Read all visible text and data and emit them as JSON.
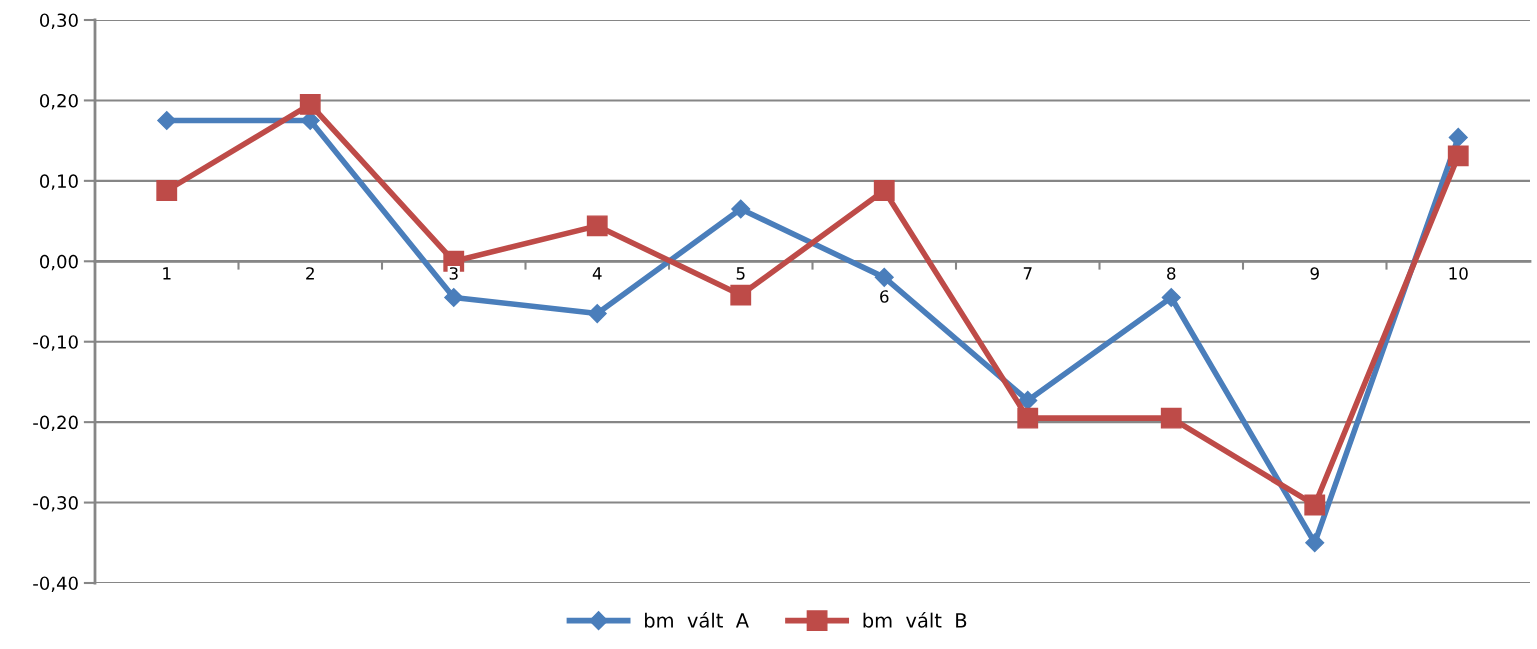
{
  "chart_data": {
    "type": "line",
    "categories": [
      "1",
      "2",
      "3",
      "4",
      "5",
      "6",
      "7",
      "8",
      "9",
      "10"
    ],
    "series": [
      {
        "name": "bm  vált  A",
        "color": "#4a7ebb",
        "marker": "diamond",
        "values": [
          0.175,
          0.175,
          -0.045,
          -0.065,
          0.065,
          -0.02,
          -0.173,
          -0.045,
          -0.35,
          0.154
        ]
      },
      {
        "name": "bm  vált  B",
        "color": "#be4b48",
        "marker": "square",
        "values": [
          0.088,
          0.195,
          0.0,
          0.044,
          -0.042,
          0.088,
          -0.195,
          -0.195,
          -0.303,
          0.131
        ]
      }
    ],
    "ylim": [
      -0.4,
      0.3
    ],
    "yticks": [
      {
        "value": -0.4,
        "label": "-0,40"
      },
      {
        "value": -0.3,
        "label": "-0,30"
      },
      {
        "value": -0.2,
        "label": "-0,20"
      },
      {
        "value": -0.1,
        "label": "-0,10"
      },
      {
        "value": 0,
        "label": "0,00"
      },
      {
        "value": 0.1,
        "label": "0,10"
      },
      {
        "value": 0.2,
        "label": "0,20"
      },
      {
        "value": 0.3,
        "label": "0,30"
      }
    ],
    "grid": "y",
    "legend": "bottom",
    "line_style": "solid"
  }
}
